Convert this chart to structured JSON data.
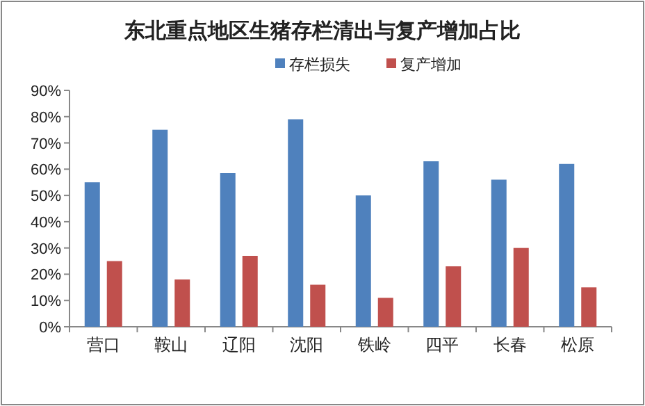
{
  "chart_data": {
    "type": "bar",
    "title": "东北重点地区生猪存栏清出与复产增加占比",
    "categories": [
      "营口",
      "鞍山",
      "辽阳",
      "沈阳",
      "铁岭",
      "四平",
      "长春",
      "松原"
    ],
    "series": [
      {
        "name": "存栏损失",
        "color": "#4f81bd",
        "values": [
          55,
          75,
          58.5,
          79,
          50,
          63,
          56,
          62
        ]
      },
      {
        "name": "复产增加",
        "color": "#c0504d",
        "values": [
          25,
          18,
          27,
          16,
          11,
          23,
          30,
          15
        ]
      }
    ],
    "ylim": [
      0,
      90
    ],
    "yticks": [
      {
        "value": 0,
        "label": "0%"
      },
      {
        "value": 10,
        "label": "10%"
      },
      {
        "value": 20,
        "label": "20%"
      },
      {
        "value": 30,
        "label": "30%"
      },
      {
        "value": 40,
        "label": "40%"
      },
      {
        "value": 50,
        "label": "50%"
      },
      {
        "value": 60,
        "label": "60%"
      },
      {
        "value": 70,
        "label": "70%"
      },
      {
        "value": 80,
        "label": "80%"
      },
      {
        "value": 90,
        "label": "90%"
      }
    ],
    "grid": false,
    "legend": "top"
  }
}
